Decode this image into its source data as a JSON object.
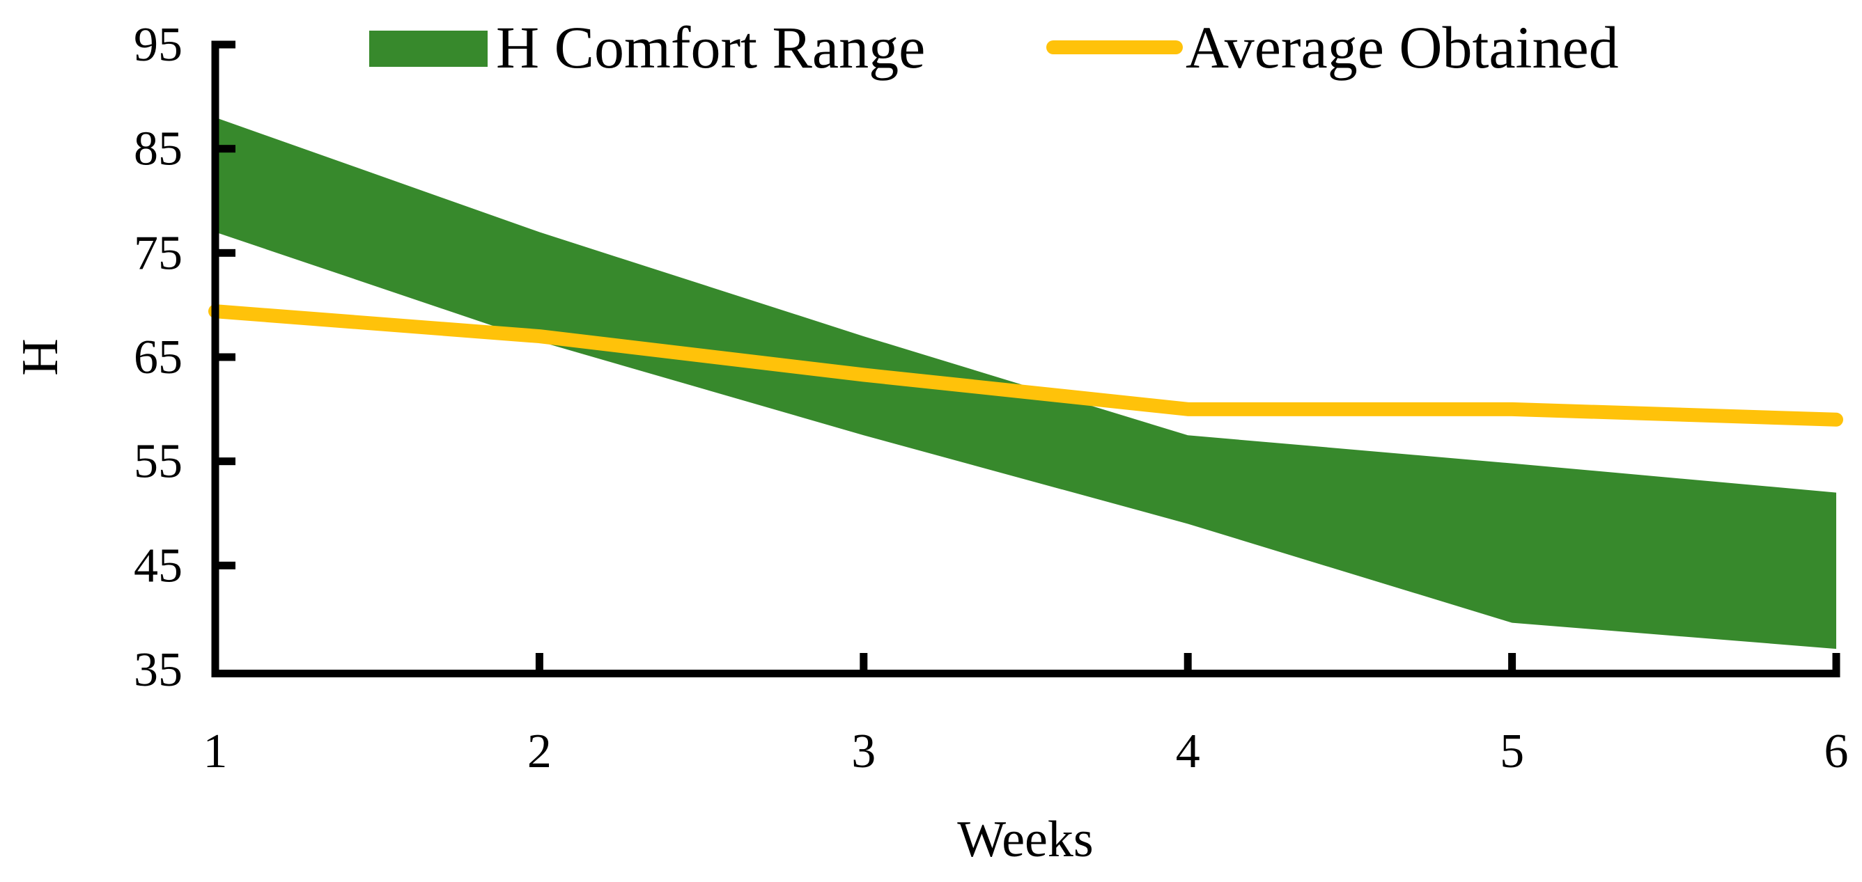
{
  "legend": {
    "items": [
      {
        "label": "H Comfort Range",
        "swatch": "band",
        "color": "#37892C"
      },
      {
        "label": "Average Obtained",
        "swatch": "line",
        "color": "#FFC20A"
      }
    ]
  },
  "axes": {
    "y_label": "H",
    "x_label": "Weeks",
    "y_ticks": [
      95,
      85,
      75,
      65,
      55,
      45,
      35
    ],
    "x_ticks": [
      1,
      2,
      3,
      4,
      5,
      6
    ]
  },
  "chart_data": {
    "type": "area",
    "title": "",
    "x": [
      1,
      2,
      3,
      4,
      5,
      6
    ],
    "xlabel": "Weeks",
    "ylabel": "H",
    "xlim": [
      1,
      6
    ],
    "ylim": [
      35,
      95
    ],
    "grid": false,
    "legend_position": "top",
    "series": [
      {
        "name": "H Comfort Range",
        "type": "band",
        "upper": [
          88,
          77,
          67,
          57.5,
          54.8,
          52
        ],
        "lower": [
          77,
          66.5,
          57.5,
          49,
          39.5,
          37
        ],
        "color": "#37892C"
      },
      {
        "name": "Average Obtained",
        "type": "line",
        "values": [
          69.4,
          67,
          63.3,
          60,
          60,
          59
        ],
        "color": "#FFC20A",
        "stroke_width": 20
      }
    ]
  }
}
